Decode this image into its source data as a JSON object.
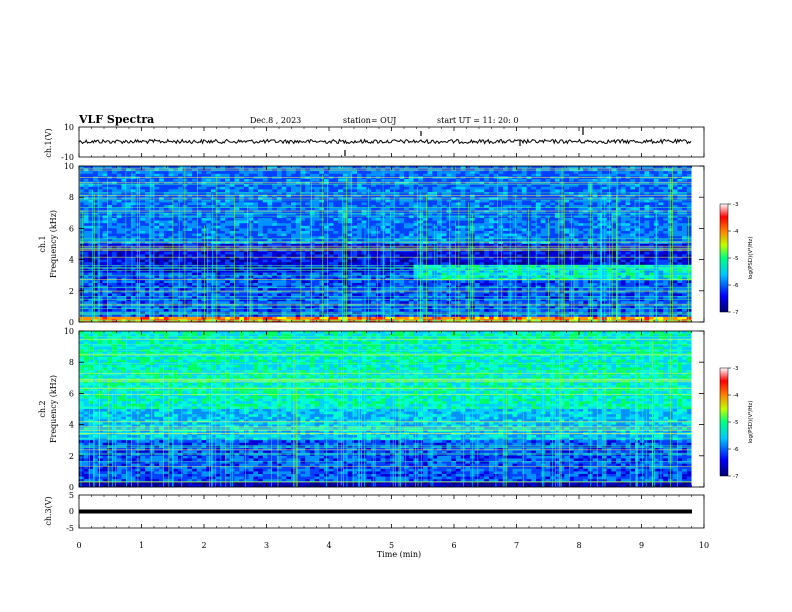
{
  "header": {
    "title": "VLF Spectra",
    "date": "Dec.8 , 2023",
    "station": "station= OUJ",
    "start": "start UT = 11: 20: 0"
  },
  "colors": {
    "colormap": [
      "#000080",
      "#0000ff",
      "#00a0ff",
      "#00ffff",
      "#00ff60",
      "#ffff00",
      "#ff8000",
      "#ff0000",
      "#ffffff"
    ],
    "trace": "#000000"
  },
  "chart_data": [
    {
      "type": "line",
      "panel": "ch1-waveform",
      "ylabel": "ch.1(V)",
      "ylim": [
        -10,
        10
      ],
      "yticks": [
        "10",
        "-10"
      ],
      "description_level_V": 0
    },
    {
      "type": "heatmap",
      "panel": "ch1-spectrogram",
      "ylabel_1": "ch.1",
      "ylabel_2": "Frequency (kHz)",
      "ylim": [
        0,
        10
      ],
      "yticks": [
        "0",
        "2",
        "4",
        "6",
        "8",
        "10"
      ],
      "colorbar": {
        "label": "log(PSD)(V²/Hz)",
        "ticks": [
          "-3",
          "-4",
          "-5",
          "-6",
          "-7"
        ],
        "range": [
          -7,
          -3
        ]
      }
    },
    {
      "type": "heatmap",
      "panel": "ch2-spectrogram",
      "ylabel_1": "ch.2",
      "ylabel_2": "Frequency (kHz)",
      "ylim": [
        0,
        10
      ],
      "yticks": [
        "0",
        "2",
        "4",
        "6",
        "8",
        "10"
      ],
      "colorbar": {
        "label": "log(PSD)(V²/Hz)",
        "ticks": [
          "-3",
          "-4",
          "-5",
          "-6",
          "-7"
        ],
        "range": [
          -7,
          -3
        ]
      }
    },
    {
      "type": "line",
      "panel": "ch3-waveform",
      "ylabel": "ch.3(V)",
      "ylim": [
        -5,
        5
      ],
      "yticks": [
        "5",
        "0",
        "-5"
      ],
      "level_V": 0
    }
  ],
  "xaxis": {
    "label": "Time (min)",
    "range": [
      0,
      10
    ],
    "ticks": [
      "0",
      "1",
      "2",
      "3",
      "4",
      "5",
      "6",
      "7",
      "8",
      "9",
      "10"
    ],
    "data_end_min": 9.8
  }
}
